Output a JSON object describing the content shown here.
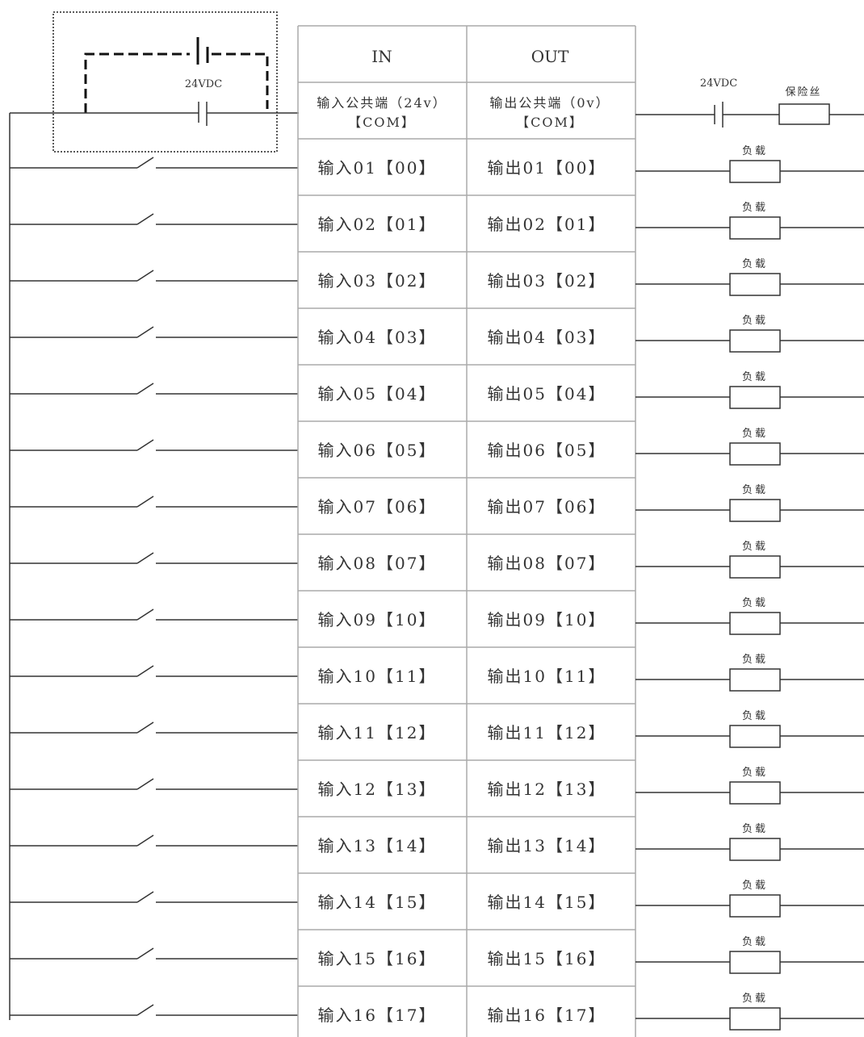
{
  "table": {
    "header_in": "IN",
    "header_out": "OUT",
    "in_common_line1": "输入公共端（24v）",
    "in_common_line2": "【COM】",
    "out_common_line1": "输出公共端（0v）",
    "out_common_line2": "【COM】",
    "inputs": [
      "输入01【00】",
      "输入02【01】",
      "输入03【02】",
      "输入04【03】",
      "输入05【04】",
      "输入06【05】",
      "输入07【06】",
      "输入08【07】",
      "输入09【10】",
      "输入10【11】",
      "输入11【12】",
      "输入12【13】",
      "输入13【14】",
      "输入14【15】",
      "输入15【16】",
      "输入16【17】"
    ],
    "outputs": [
      "输出01【00】",
      "输出02【01】",
      "输出03【02】",
      "输出04【03】",
      "输出05【04】",
      "输出06【05】",
      "输出07【06】",
      "输出08【07】",
      "输出09【10】",
      "输出10【11】",
      "输出11【12】",
      "输出12【13】",
      "输出13【14】",
      "输出14【15】",
      "输出15【16】",
      "输出16【17】"
    ]
  },
  "left_supply_label": "24VDC",
  "right_supply_label": "24VDC",
  "fuse_label": "保险丝",
  "load_label": "负载"
}
